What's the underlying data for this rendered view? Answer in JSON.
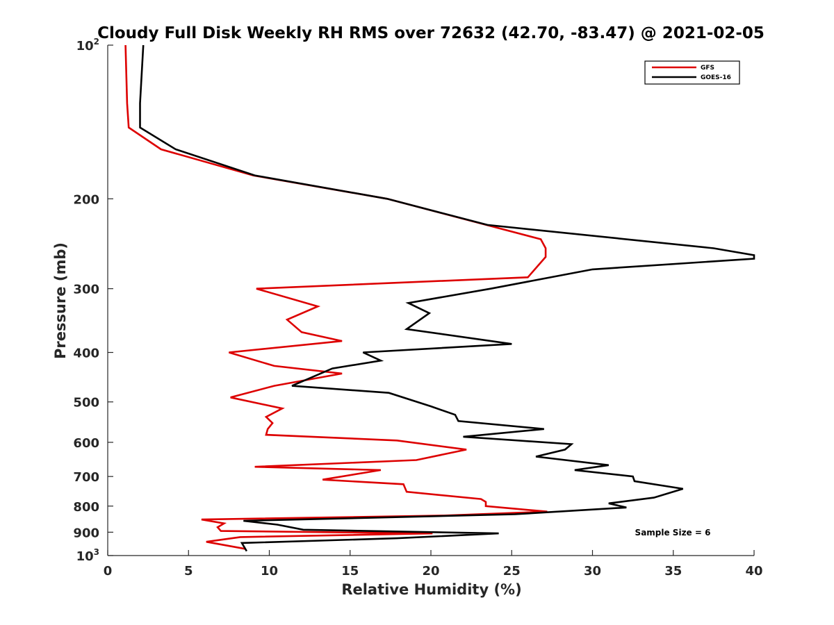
{
  "chart_data": {
    "type": "line",
    "title": "Cloudy Full Disk Weekly RH RMS over 72632 (42.70, -83.47) @ 2021-02-05",
    "xlabel": "Relative Humidity (%)",
    "ylabel": "Pressure (mb)",
    "xlim": [
      0,
      40
    ],
    "ylim": [
      100,
      1000
    ],
    "y_scale": "log",
    "y_reversed": true,
    "grid": false,
    "legend_position": "top-right",
    "annotation": "Sample Size = 6",
    "x_ticks": [
      {
        "value": 0,
        "label": "0"
      },
      {
        "value": 5,
        "label": "5"
      },
      {
        "value": 10,
        "label": "10"
      },
      {
        "value": 15,
        "label": "15"
      },
      {
        "value": 20,
        "label": "20"
      },
      {
        "value": 25,
        "label": "25"
      },
      {
        "value": 30,
        "label": "30"
      },
      {
        "value": 35,
        "label": "35"
      },
      {
        "value": 40,
        "label": "40"
      }
    ],
    "y_ticks": [
      {
        "value": 100,
        "base": "10",
        "exp": "2"
      },
      {
        "value": 200,
        "label": "200"
      },
      {
        "value": 300,
        "label": "300"
      },
      {
        "value": 400,
        "label": "400"
      },
      {
        "value": 500,
        "label": "500"
      },
      {
        "value": 600,
        "label": "600"
      },
      {
        "value": 700,
        "label": "700"
      },
      {
        "value": 800,
        "label": "800"
      },
      {
        "value": 900,
        "label": "900"
      },
      {
        "value": 1000,
        "base": "10",
        "exp": "3"
      }
    ],
    "series": [
      {
        "name": "GFS",
        "color": "#dd0000",
        "points": [
          [
            1.1,
            100
          ],
          [
            1.2,
            130
          ],
          [
            1.3,
            145
          ],
          [
            3.3,
            160
          ],
          [
            9.0,
            180
          ],
          [
            17.3,
            200
          ],
          [
            26.8,
            240
          ],
          [
            27.1,
            250
          ],
          [
            27.1,
            260
          ],
          [
            26.0,
            285
          ],
          [
            9.2,
            300
          ],
          [
            13.0,
            325
          ],
          [
            11.1,
            345
          ],
          [
            12.0,
            365
          ],
          [
            14.5,
            380
          ],
          [
            7.5,
            400
          ],
          [
            10.3,
            425
          ],
          [
            14.5,
            440
          ],
          [
            10.3,
            465
          ],
          [
            7.6,
            490
          ],
          [
            10.8,
            515
          ],
          [
            9.8,
            535
          ],
          [
            10.2,
            550
          ],
          [
            9.9,
            565
          ],
          [
            9.8,
            580
          ],
          [
            17.9,
            595
          ],
          [
            22.2,
            620
          ],
          [
            19.1,
            650
          ],
          [
            9.1,
            670
          ],
          [
            16.9,
            680
          ],
          [
            13.3,
            710
          ],
          [
            18.3,
            725
          ],
          [
            18.5,
            750
          ],
          [
            23.1,
            775
          ],
          [
            23.4,
            785
          ],
          [
            23.4,
            800
          ],
          [
            27.2,
            820
          ],
          [
            20.8,
            835
          ],
          [
            5.8,
            850
          ],
          [
            7.2,
            865
          ],
          [
            6.8,
            880
          ],
          [
            7.0,
            895
          ],
          [
            20.1,
            905
          ],
          [
            8.2,
            920
          ],
          [
            6.1,
            940
          ],
          [
            8.5,
            970
          ]
        ]
      },
      {
        "name": "GOES-16",
        "color": "#000000",
        "points": [
          [
            2.2,
            100
          ],
          [
            2.0,
            130
          ],
          [
            2.0,
            145
          ],
          [
            4.2,
            160
          ],
          [
            9.1,
            180
          ],
          [
            17.3,
            200
          ],
          [
            23.5,
            225
          ],
          [
            37.5,
            250
          ],
          [
            40.0,
            258
          ],
          [
            40.0,
            262
          ],
          [
            30.0,
            275
          ],
          [
            23.7,
            300
          ],
          [
            18.6,
            320
          ],
          [
            19.9,
            335
          ],
          [
            18.5,
            360
          ],
          [
            25.0,
            385
          ],
          [
            15.8,
            400
          ],
          [
            16.9,
            415
          ],
          [
            13.9,
            430
          ],
          [
            11.4,
            465
          ],
          [
            17.4,
            480
          ],
          [
            20.0,
            510
          ],
          [
            21.5,
            530
          ],
          [
            21.7,
            545
          ],
          [
            27.0,
            565
          ],
          [
            22.0,
            585
          ],
          [
            28.7,
            605
          ],
          [
            28.3,
            620
          ],
          [
            26.5,
            640
          ],
          [
            31.0,
            665
          ],
          [
            28.9,
            680
          ],
          [
            32.5,
            700
          ],
          [
            32.6,
            715
          ],
          [
            35.6,
            740
          ],
          [
            33.8,
            770
          ],
          [
            31.0,
            790
          ],
          [
            32.1,
            805
          ],
          [
            25.2,
            830
          ],
          [
            8.4,
            855
          ],
          [
            10.5,
            870
          ],
          [
            12.1,
            890
          ],
          [
            24.2,
            905
          ],
          [
            17.9,
            925
          ],
          [
            8.3,
            945
          ],
          [
            8.6,
            980
          ]
        ]
      }
    ]
  }
}
